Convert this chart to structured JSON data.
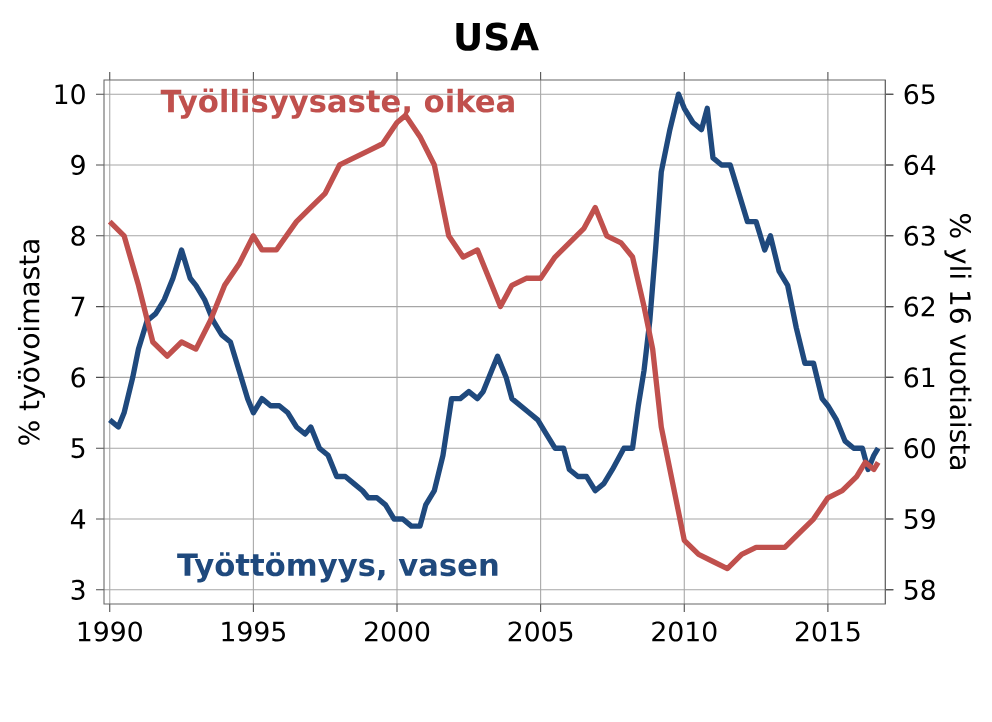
{
  "chart_data": {
    "type": "line",
    "title": "USA",
    "ylabel": "% työvoimasta",
    "y2label": "% yli 16 vuotiaista",
    "xlim": [
      1989.8,
      2017
    ],
    "xticks": [
      1990,
      1995,
      2000,
      2005,
      2010,
      2015
    ],
    "ylim": [
      2.8,
      10.2
    ],
    "yticks": [
      3,
      4,
      5,
      6,
      7,
      8,
      9,
      10
    ],
    "y2lim": [
      57.8,
      65.2
    ],
    "y2ticks": [
      58,
      59,
      60,
      61,
      62,
      63,
      64,
      65
    ],
    "grid": true,
    "line_style": "solid",
    "marker": "none",
    "series": [
      {
        "name": "Työttömyys, vasen",
        "color": "#1f497d",
        "axis": "y",
        "x": [
          1990.0,
          1990.3,
          1990.5,
          1990.8,
          1991.0,
          1991.3,
          1991.6,
          1991.9,
          1992.2,
          1992.5,
          1992.8,
          1993.0,
          1993.3,
          1993.6,
          1993.9,
          1994.2,
          1994.5,
          1994.8,
          1995.0,
          1995.3,
          1995.6,
          1995.9,
          1996.2,
          1996.5,
          1996.8,
          1997.0,
          1997.3,
          1997.6,
          1997.9,
          1998.2,
          1998.5,
          1998.8,
          1999.0,
          1999.3,
          1999.6,
          1999.9,
          2000.2,
          2000.5,
          2000.8,
          2001.0,
          2001.3,
          2001.6,
          2001.9,
          2002.2,
          2002.5,
          2002.8,
          2003.0,
          2003.3,
          2003.5,
          2003.8,
          2004.0,
          2004.3,
          2004.6,
          2004.9,
          2005.2,
          2005.5,
          2005.8,
          2006.0,
          2006.3,
          2006.6,
          2006.9,
          2007.2,
          2007.5,
          2007.9,
          2008.2,
          2008.4,
          2008.6,
          2008.8,
          2009.0,
          2009.2,
          2009.5,
          2009.8,
          2010.0,
          2010.3,
          2010.6,
          2010.8,
          2011.0,
          2011.3,
          2011.6,
          2011.9,
          2012.2,
          2012.5,
          2012.8,
          2013.0,
          2013.3,
          2013.6,
          2013.9,
          2014.2,
          2014.5,
          2014.8,
          2015.0,
          2015.3,
          2015.6,
          2015.9,
          2016.2,
          2016.4,
          2016.6,
          2016.75
        ],
        "values": [
          5.4,
          5.3,
          5.5,
          6.0,
          6.4,
          6.8,
          6.9,
          7.1,
          7.4,
          7.8,
          7.4,
          7.3,
          7.1,
          6.8,
          6.6,
          6.5,
          6.1,
          5.7,
          5.5,
          5.7,
          5.6,
          5.6,
          5.5,
          5.3,
          5.2,
          5.3,
          5.0,
          4.9,
          4.6,
          4.6,
          4.5,
          4.4,
          4.3,
          4.3,
          4.2,
          4.0,
          4.0,
          3.9,
          3.9,
          4.2,
          4.4,
          4.9,
          5.7,
          5.7,
          5.8,
          5.7,
          5.8,
          6.1,
          6.3,
          6.0,
          5.7,
          5.6,
          5.5,
          5.4,
          5.2,
          5.0,
          5.0,
          4.7,
          4.6,
          4.6,
          4.4,
          4.5,
          4.7,
          5.0,
          5.0,
          5.6,
          6.1,
          6.8,
          7.8,
          8.9,
          9.5,
          10.0,
          9.8,
          9.6,
          9.5,
          9.8,
          9.1,
          9.0,
          9.0,
          8.6,
          8.2,
          8.2,
          7.8,
          8.0,
          7.5,
          7.3,
          6.7,
          6.2,
          6.2,
          5.7,
          5.6,
          5.4,
          5.1,
          5.0,
          5.0,
          4.7,
          4.9,
          5.0
        ]
      },
      {
        "name": "Työllisyysaste, oikea",
        "color": "#c0504d",
        "axis": "y2",
        "x": [
          1990.0,
          1990.5,
          1991.0,
          1991.5,
          1992.0,
          1992.5,
          1993.0,
          1993.5,
          1994.0,
          1994.5,
          1995.0,
          1995.3,
          1995.8,
          1996.5,
          1997.0,
          1997.5,
          1998.0,
          1998.5,
          1999.0,
          1999.5,
          2000.0,
          2000.3,
          2000.8,
          2001.3,
          2001.8,
          2002.3,
          2002.8,
          2003.3,
          2003.6,
          2004.0,
          2004.5,
          2005.0,
          2005.5,
          2006.0,
          2006.5,
          2006.9,
          2007.3,
          2007.8,
          2008.2,
          2008.6,
          2008.9,
          2009.2,
          2009.6,
          2010.0,
          2010.5,
          2011.0,
          2011.5,
          2012.0,
          2012.5,
          2013.0,
          2013.5,
          2014.0,
          2014.5,
          2015.0,
          2015.5,
          2016.0,
          2016.3,
          2016.6,
          2016.75
        ],
        "values": [
          63.2,
          63.0,
          62.3,
          61.5,
          61.3,
          61.5,
          61.4,
          61.8,
          62.3,
          62.6,
          63.0,
          62.8,
          62.8,
          63.2,
          63.4,
          63.6,
          64.0,
          64.1,
          64.2,
          64.3,
          64.6,
          64.7,
          64.4,
          64.0,
          63.0,
          62.7,
          62.8,
          62.3,
          62.0,
          62.3,
          62.4,
          62.4,
          62.7,
          62.9,
          63.1,
          63.4,
          63.0,
          62.9,
          62.7,
          62.0,
          61.4,
          60.3,
          59.5,
          58.7,
          58.5,
          58.4,
          58.3,
          58.5,
          58.6,
          58.6,
          58.6,
          58.8,
          59.0,
          59.3,
          59.4,
          59.6,
          59.8,
          59.7,
          59.8
        ]
      }
    ]
  }
}
